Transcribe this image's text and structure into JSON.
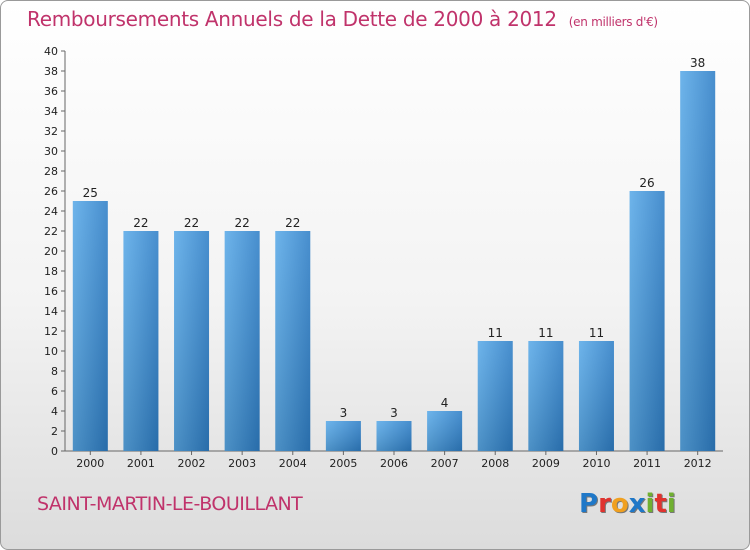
{
  "chart_data": {
    "type": "bar",
    "title": "Remboursements Annuels de la Dette de 2000 à 2012",
    "subtitle": "(en milliers d'€)",
    "categories": [
      "2000",
      "2001",
      "2002",
      "2003",
      "2004",
      "2005",
      "2006",
      "2007",
      "2008",
      "2009",
      "2010",
      "2011",
      "2012"
    ],
    "values": [
      25,
      22,
      22,
      22,
      22,
      3,
      3,
      4,
      11,
      11,
      11,
      26,
      38
    ],
    "ylim": [
      0,
      40
    ],
    "ytick_step": 2,
    "grid": false,
    "bar_color": "#3a8fd8",
    "xlabel": "",
    "ylabel": ""
  },
  "footer": {
    "place": "SAINT-MARTIN-LE-BOUILLANT",
    "logo_letters": [
      "P",
      "r",
      "o",
      "x",
      "i",
      "t",
      "i"
    ],
    "logo_colors": [
      "#1f78c8",
      "#e0332f",
      "#f0a020",
      "#1f78c8",
      "#70b030",
      "#e0332f",
      "#70b030"
    ]
  },
  "colors": {
    "accent": "#c0336b"
  }
}
